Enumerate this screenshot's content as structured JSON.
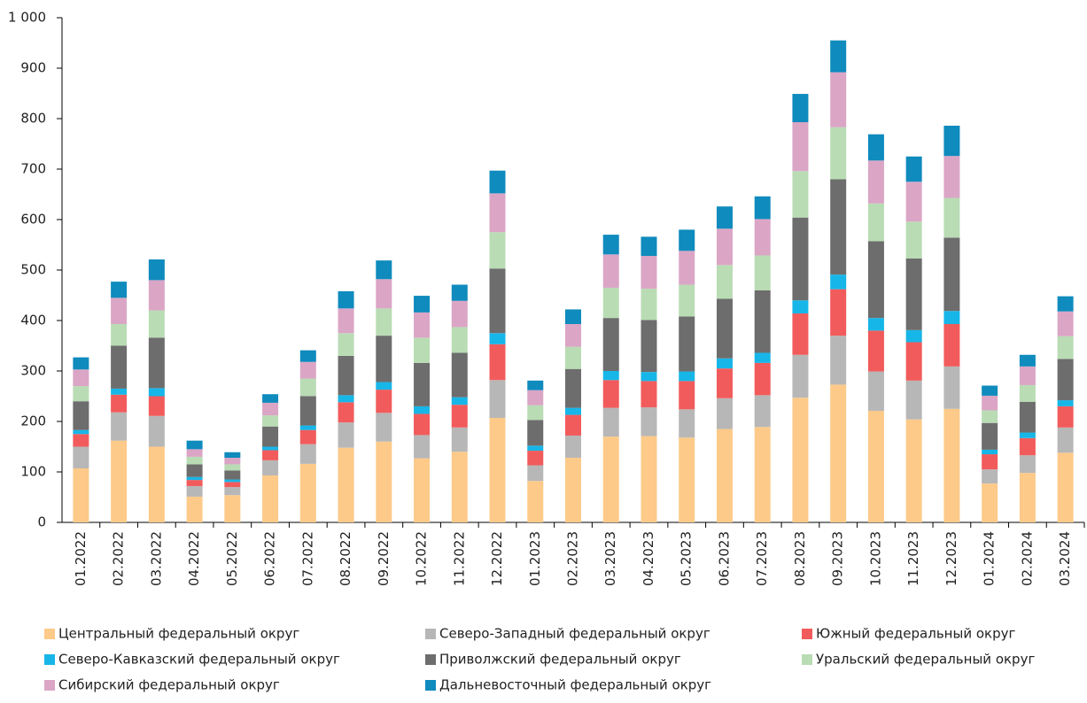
{
  "chart_data": {
    "type": "stacked_bar",
    "categories": [
      "01.2022",
      "02.2022",
      "03.2022",
      "04.2022",
      "05.2022",
      "06.2022",
      "07.2022",
      "08.2022",
      "09.2022",
      "10.2022",
      "11.2022",
      "12.2022",
      "01.2023",
      "02.2023",
      "03.2023",
      "04.2023",
      "05.2023",
      "06.2023",
      "07.2023",
      "08.2023",
      "09.2023",
      "10.2023",
      "11.2023",
      "12.2023",
      "01.2024",
      "02.2024",
      "03.2024"
    ],
    "series": [
      {
        "name": "Центральный федеральный округ",
        "color": "#fdca89",
        "values": [
          107,
          162,
          150,
          51,
          54,
          93,
          116,
          148,
          160,
          127,
          140,
          207,
          82,
          128,
          170,
          171,
          168,
          185,
          189,
          247,
          273,
          221,
          204,
          225,
          77,
          98,
          138
        ]
      },
      {
        "name": "Северо-Западный федеральный округ",
        "color": "#b7b7b7",
        "values": [
          43,
          56,
          61,
          21,
          16,
          30,
          39,
          50,
          57,
          46,
          48,
          75,
          31,
          44,
          57,
          57,
          56,
          61,
          63,
          85,
          97,
          78,
          77,
          84,
          28,
          35,
          50
        ]
      },
      {
        "name": "Южный федеральный округ",
        "color": "#f25b5b",
        "values": [
          25,
          35,
          39,
          12,
          10,
          20,
          28,
          40,
          46,
          42,
          45,
          71,
          29,
          41,
          55,
          52,
          56,
          59,
          64,
          82,
          92,
          81,
          76,
          84,
          30,
          34,
          42
        ]
      },
      {
        "name": "Северо-Кавказский федеральный округ",
        "color": "#17b6e8",
        "values": [
          8,
          12,
          16,
          6,
          5,
          7,
          9,
          14,
          15,
          15,
          15,
          22,
          10,
          14,
          18,
          18,
          19,
          20,
          20,
          26,
          29,
          25,
          24,
          26,
          9,
          11,
          12
        ]
      },
      {
        "name": "Приволжский федеральный округ",
        "color": "#6d6d6d",
        "values": [
          57,
          85,
          100,
          25,
          18,
          40,
          58,
          78,
          92,
          86,
          88,
          128,
          51,
          77,
          105,
          103,
          109,
          118,
          124,
          164,
          189,
          152,
          142,
          145,
          53,
          61,
          82
        ]
      },
      {
        "name": "Уральский федеральный округ",
        "color": "#b9dcb4",
        "values": [
          30,
          43,
          54,
          15,
          12,
          22,
          35,
          45,
          54,
          50,
          51,
          72,
          29,
          44,
          60,
          62,
          63,
          67,
          69,
          92,
          103,
          75,
          73,
          79,
          25,
          33,
          45
        ]
      },
      {
        "name": "Сибирский федеральный округ",
        "color": "#dba5c6",
        "values": [
          33,
          52,
          60,
          15,
          13,
          25,
          33,
          49,
          58,
          50,
          52,
          77,
          30,
          45,
          66,
          65,
          67,
          72,
          72,
          97,
          109,
          85,
          79,
          83,
          29,
          37,
          49
        ]
      },
      {
        "name": "Дальневосточный федеральный округ",
        "color": "#0f8bbd",
        "values": [
          24,
          32,
          41,
          17,
          11,
          17,
          23,
          34,
          37,
          33,
          32,
          45,
          19,
          29,
          39,
          38,
          42,
          44,
          45,
          56,
          63,
          52,
          50,
          60,
          20,
          23,
          30
        ]
      }
    ],
    "ylim": [
      0,
      1000
    ],
    "yticks": [
      0,
      100,
      200,
      300,
      400,
      500,
      600,
      700,
      800,
      900,
      {
        "value": 1000,
        "label": "1 000"
      }
    ]
  }
}
